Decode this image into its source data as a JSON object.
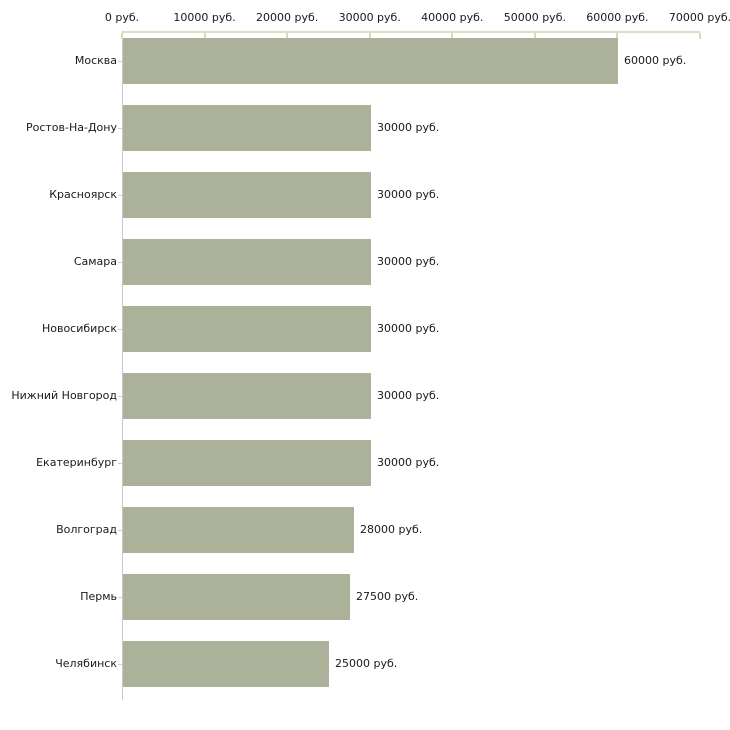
{
  "chart_data": {
    "type": "bar",
    "orientation": "horizontal",
    "title": "",
    "xlabel": "",
    "ylabel": "",
    "xlim": [
      0,
      70000
    ],
    "x_tick_step": 10000,
    "x_tick_labels": [
      "0 руб.",
      "10000 руб.",
      "20000 руб.",
      "30000 руб.",
      "40000 руб.",
      "50000 руб.",
      "60000 руб.",
      "70000 руб."
    ],
    "unit": "руб.",
    "categories": [
      "Москва",
      "Ростов-На-Дону",
      "Красноярск",
      "Самара",
      "Новосибирск",
      "Нижний Новгород",
      "Екатеринбург",
      "Волгоград",
      "Пермь",
      "Челябинск"
    ],
    "values": [
      60000,
      30000,
      30000,
      30000,
      30000,
      30000,
      30000,
      28000,
      27500,
      25000
    ],
    "value_labels": [
      "60000 руб.",
      "30000 руб.",
      "30000 руб.",
      "30000 руб.",
      "30000 руб.",
      "30000 руб.",
      "30000 руб.",
      "28000 руб.",
      "27500 руб.",
      "25000 руб."
    ],
    "grid": false,
    "legend": false,
    "colors": {
      "bar_fill": "#acb299",
      "x_axis_line": "#dcddc3",
      "x_tick_mark": "#d9dab8",
      "y_axis_line": "#c9c9c9",
      "category_tick_mark": "#cfd2b8",
      "text": "#1a1a1a",
      "background": "#ffffff"
    }
  }
}
